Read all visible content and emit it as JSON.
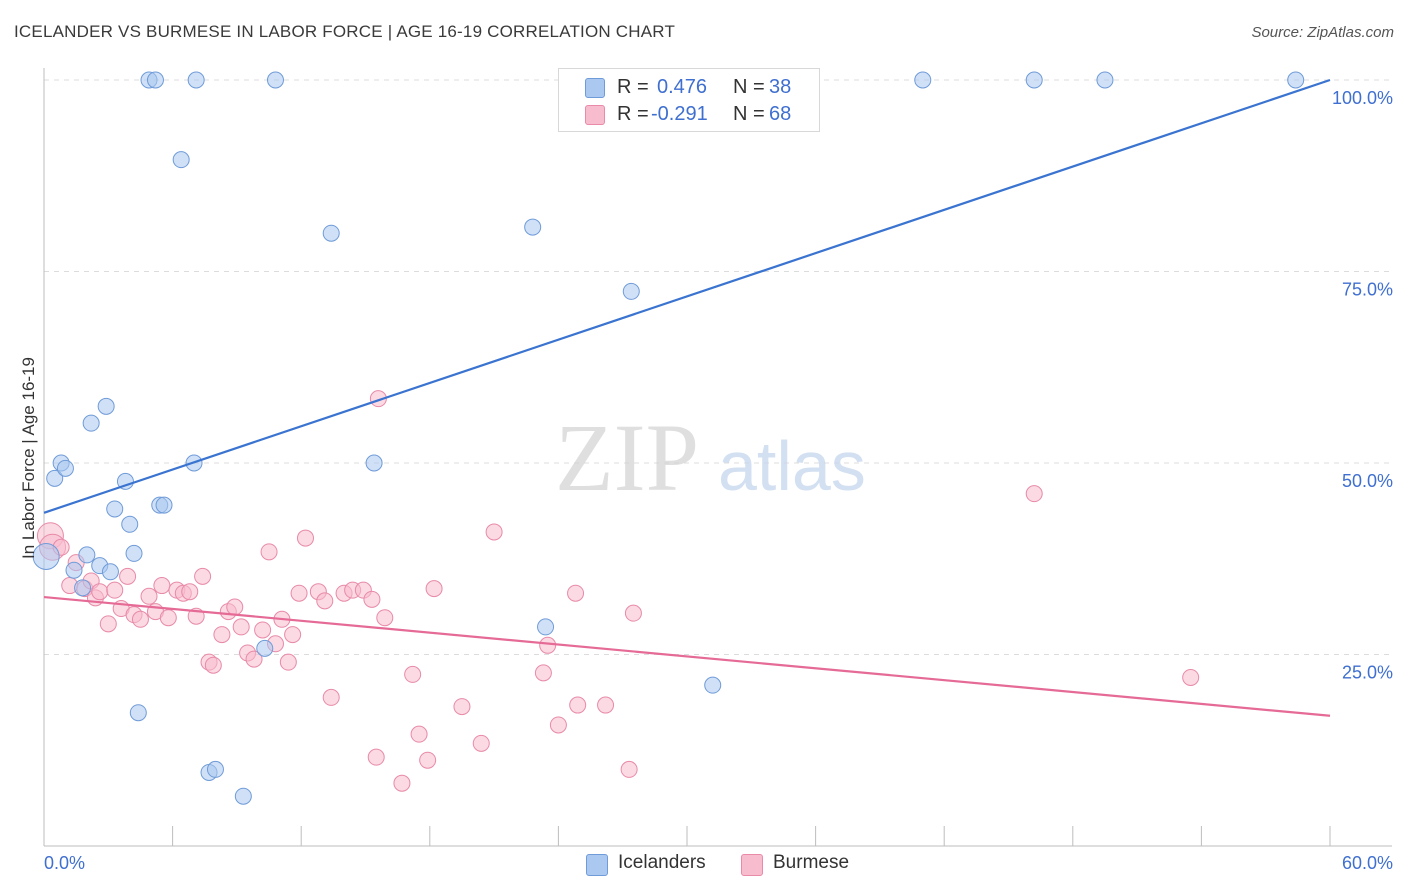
{
  "title": "ICELANDER VS BURMESE IN LABOR FORCE | AGE 16-19 CORRELATION CHART",
  "source": "Source: ZipAtlas.com",
  "watermark": {
    "zip": "ZIP",
    "atlas": "atlas"
  },
  "colors": {
    "icelanders_fill": "#aac8f0",
    "icelanders_stroke": "#6f9bd8",
    "icelanders_line": "#3a74d0",
    "burmese_fill": "#f7bccd",
    "burmese_stroke": "#e88aa8",
    "burmese_line": "#e56a96",
    "axis_label": "#3f6fd0",
    "grid": "#dcdcdc"
  },
  "legend": {
    "rows": [
      {
        "r_label": "R =",
        "r_value": "0.476",
        "n_label": "N =",
        "n_value": "38"
      },
      {
        "r_label": "R =",
        "r_value": "-0.291",
        "n_label": "N =",
        "n_value": "68"
      }
    ]
  },
  "bottom_legend": {
    "icelanders": "Icelanders",
    "burmese": "Burmese"
  },
  "chart_data": {
    "type": "scatter",
    "xlabel": "",
    "ylabel": "In Labor Force | Age 16-19",
    "xlim": [
      0,
      60
    ],
    "ylim": [
      0,
      100
    ],
    "x_tick_labels": [
      "0.0%",
      "60.0%"
    ],
    "y_ticks": [
      25,
      50,
      75,
      100
    ],
    "y_tick_labels": [
      "25.0%",
      "50.0%",
      "75.0%",
      "100.0%"
    ],
    "series": [
      {
        "name": "Icelanders",
        "r": 0.476,
        "n": 38,
        "trend": {
          "x": [
            0,
            60
          ],
          "y": [
            43.5,
            100
          ]
        },
        "points": [
          {
            "x": 0.1,
            "y": 37.8,
            "big": true
          },
          {
            "x": 0.5,
            "y": 48.0
          },
          {
            "x": 0.8,
            "y": 50.0
          },
          {
            "x": 1.0,
            "y": 49.3
          },
          {
            "x": 1.4,
            "y": 36.0
          },
          {
            "x": 1.8,
            "y": 33.7
          },
          {
            "x": 2.0,
            "y": 38.0
          },
          {
            "x": 2.2,
            "y": 55.2
          },
          {
            "x": 2.6,
            "y": 36.6
          },
          {
            "x": 2.9,
            "y": 57.4
          },
          {
            "x": 3.1,
            "y": 35.8
          },
          {
            "x": 3.3,
            "y": 44.0
          },
          {
            "x": 3.8,
            "y": 47.6
          },
          {
            "x": 4.0,
            "y": 42.0
          },
          {
            "x": 4.2,
            "y": 38.2
          },
          {
            "x": 4.4,
            "y": 17.4
          },
          {
            "x": 4.9,
            "y": 100.0
          },
          {
            "x": 5.2,
            "y": 100.0
          },
          {
            "x": 5.4,
            "y": 44.5
          },
          {
            "x": 5.6,
            "y": 44.5
          },
          {
            "x": 6.4,
            "y": 89.6
          },
          {
            "x": 7.0,
            "y": 50.0
          },
          {
            "x": 7.1,
            "y": 100.0
          },
          {
            "x": 7.7,
            "y": 9.6
          },
          {
            "x": 8.0,
            "y": 10.0
          },
          {
            "x": 9.3,
            "y": 6.5
          },
          {
            "x": 10.3,
            "y": 25.8
          },
          {
            "x": 10.8,
            "y": 100.0
          },
          {
            "x": 13.4,
            "y": 80.0
          },
          {
            "x": 15.4,
            "y": 50.0
          },
          {
            "x": 22.8,
            "y": 80.8
          },
          {
            "x": 23.4,
            "y": 28.6
          },
          {
            "x": 27.4,
            "y": 72.4
          },
          {
            "x": 31.2,
            "y": 21.0
          },
          {
            "x": 41.0,
            "y": 100.0
          },
          {
            "x": 46.2,
            "y": 100.0
          },
          {
            "x": 49.5,
            "y": 100.0
          },
          {
            "x": 58.4,
            "y": 100.0
          }
        ]
      },
      {
        "name": "Burmese",
        "r": -0.291,
        "n": 68,
        "trend": {
          "x": [
            0,
            60
          ],
          "y": [
            32.5,
            17.0
          ]
        },
        "points": [
          {
            "x": 0.3,
            "y": 40.5,
            "big": true
          },
          {
            "x": 0.4,
            "y": 39.0,
            "big": true
          },
          {
            "x": 0.8,
            "y": 39.0
          },
          {
            "x": 1.2,
            "y": 34.0
          },
          {
            "x": 1.5,
            "y": 37.0
          },
          {
            "x": 1.9,
            "y": 33.6
          },
          {
            "x": 2.2,
            "y": 34.6
          },
          {
            "x": 2.4,
            "y": 32.4
          },
          {
            "x": 2.6,
            "y": 33.2
          },
          {
            "x": 3.0,
            "y": 29.0
          },
          {
            "x": 3.3,
            "y": 33.4
          },
          {
            "x": 3.6,
            "y": 31.0
          },
          {
            "x": 3.9,
            "y": 35.2
          },
          {
            "x": 4.2,
            "y": 30.2
          },
          {
            "x": 4.5,
            "y": 29.6
          },
          {
            "x": 4.9,
            "y": 32.6
          },
          {
            "x": 5.2,
            "y": 30.6
          },
          {
            "x": 5.5,
            "y": 34.0
          },
          {
            "x": 5.8,
            "y": 29.8
          },
          {
            "x": 6.2,
            "y": 33.4
          },
          {
            "x": 6.5,
            "y": 33.0
          },
          {
            "x": 6.8,
            "y": 33.2
          },
          {
            "x": 7.1,
            "y": 30.0
          },
          {
            "x": 7.4,
            "y": 35.2
          },
          {
            "x": 7.7,
            "y": 24.0
          },
          {
            "x": 7.9,
            "y": 23.6
          },
          {
            "x": 8.3,
            "y": 27.6
          },
          {
            "x": 8.6,
            "y": 30.6
          },
          {
            "x": 8.9,
            "y": 31.2
          },
          {
            "x": 9.2,
            "y": 28.6
          },
          {
            "x": 9.5,
            "y": 25.2
          },
          {
            "x": 9.8,
            "y": 24.4
          },
          {
            "x": 10.2,
            "y": 28.2
          },
          {
            "x": 10.5,
            "y": 38.4
          },
          {
            "x": 10.8,
            "y": 26.4
          },
          {
            "x": 11.1,
            "y": 29.6
          },
          {
            "x": 11.4,
            "y": 24.0
          },
          {
            "x": 11.6,
            "y": 27.6
          },
          {
            "x": 11.9,
            "y": 33.0
          },
          {
            "x": 12.2,
            "y": 40.2
          },
          {
            "x": 12.8,
            "y": 33.2
          },
          {
            "x": 13.1,
            "y": 32.0
          },
          {
            "x": 13.4,
            "y": 19.4
          },
          {
            "x": 14.0,
            "y": 33.0
          },
          {
            "x": 14.4,
            "y": 33.4
          },
          {
            "x": 14.9,
            "y": 33.4
          },
          {
            "x": 15.3,
            "y": 32.2
          },
          {
            "x": 15.5,
            "y": 11.6
          },
          {
            "x": 15.6,
            "y": 58.4
          },
          {
            "x": 15.9,
            "y": 29.8
          },
          {
            "x": 16.7,
            "y": 8.2
          },
          {
            "x": 17.2,
            "y": 22.4
          },
          {
            "x": 17.5,
            "y": 14.6
          },
          {
            "x": 17.9,
            "y": 11.2
          },
          {
            "x": 18.2,
            "y": 33.6
          },
          {
            "x": 19.5,
            "y": 18.2
          },
          {
            "x": 20.4,
            "y": 13.4
          },
          {
            "x": 21.0,
            "y": 41.0
          },
          {
            "x": 23.3,
            "y": 22.6
          },
          {
            "x": 23.5,
            "y": 26.2
          },
          {
            "x": 24.0,
            "y": 15.8
          },
          {
            "x": 24.8,
            "y": 33.0
          },
          {
            "x": 24.9,
            "y": 18.4
          },
          {
            "x": 26.2,
            "y": 18.4
          },
          {
            "x": 27.3,
            "y": 10.0
          },
          {
            "x": 27.5,
            "y": 30.4
          },
          {
            "x": 46.2,
            "y": 46.0
          },
          {
            "x": 53.5,
            "y": 22.0
          }
        ]
      }
    ]
  }
}
